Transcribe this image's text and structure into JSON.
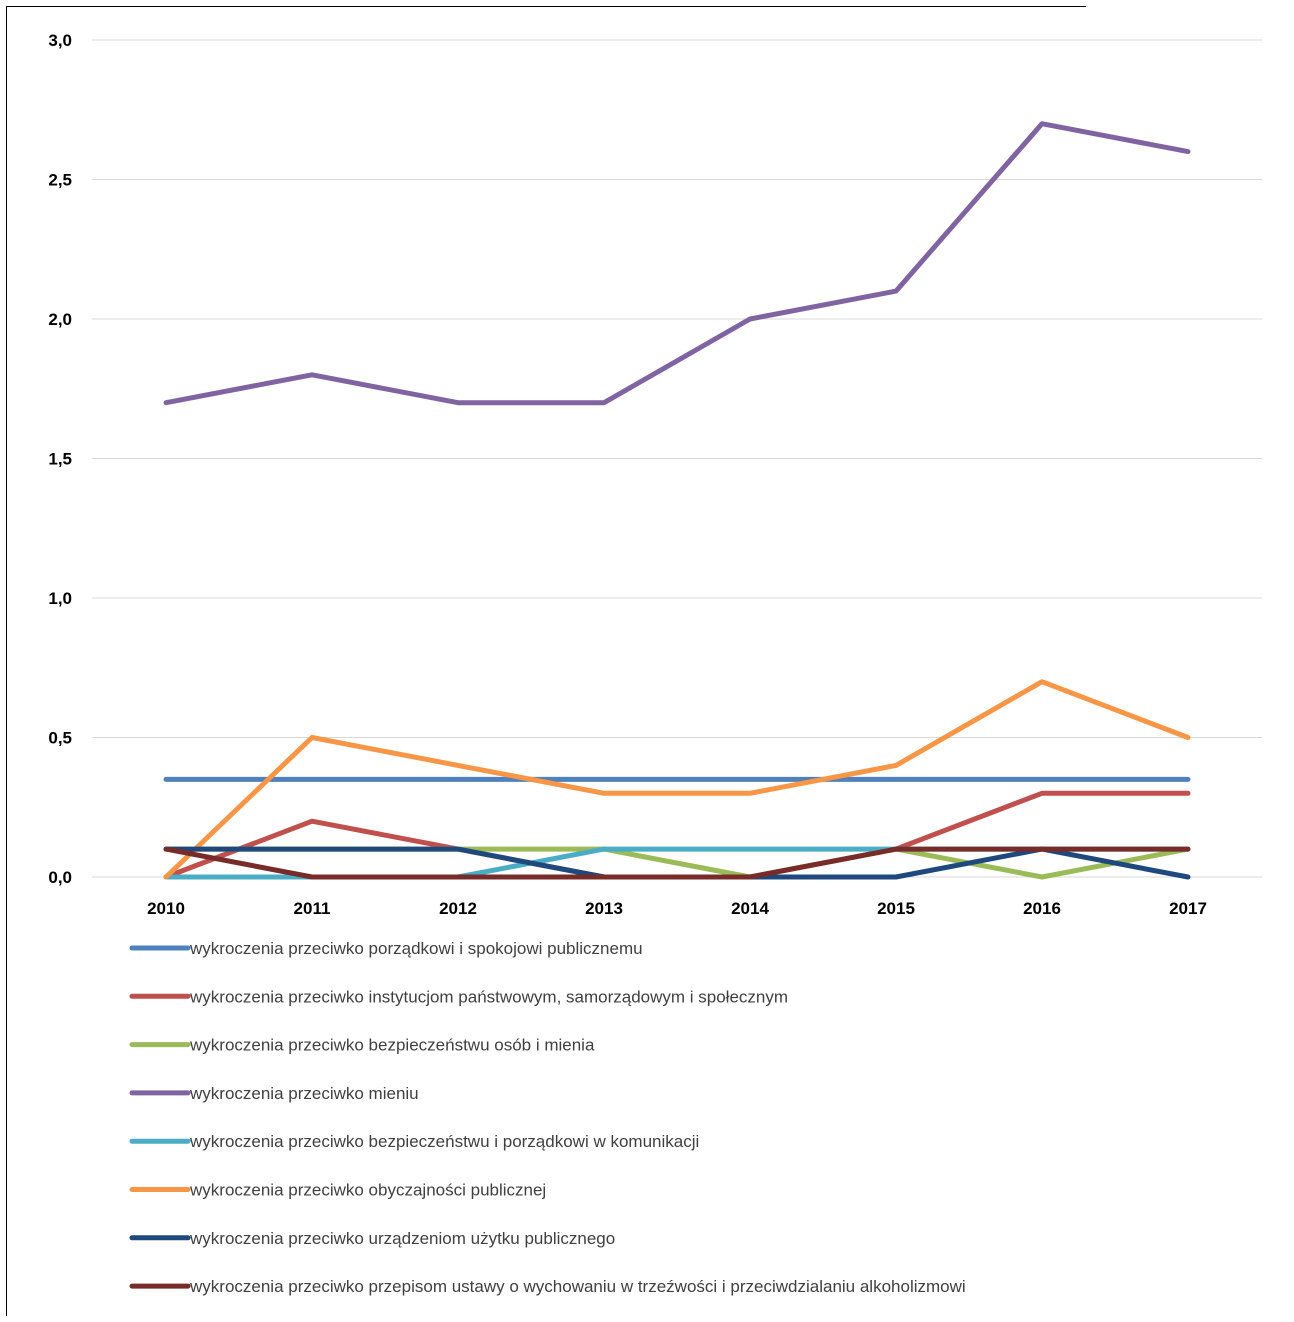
{
  "chart_data": {
    "type": "line",
    "title": "",
    "xlabel": "",
    "ylabel": "",
    "ylim": [
      0,
      3
    ],
    "yticks": [
      "0,0",
      "0,5",
      "1,0",
      "1,5",
      "2,0",
      "2,5",
      "3,0"
    ],
    "ytick_values": [
      0,
      0.5,
      1.0,
      1.5,
      2.0,
      2.5,
      3.0
    ],
    "categories": [
      "2010",
      "2011",
      "2012",
      "2013",
      "2014",
      "2015",
      "2016",
      "2017"
    ],
    "grid": "horizontal",
    "legend_position": "bottom",
    "series": [
      {
        "name": "wykroczenia przeciwko porządkowi i spokojowi publicznemu",
        "color": "#4f81bd",
        "values": [
          0.35,
          0.35,
          0.35,
          0.35,
          0.35,
          0.35,
          0.35,
          0.35
        ]
      },
      {
        "name": "wykroczenia przeciwko instytucjom państwowym, samorządowym i społecznym",
        "color": "#c0504d",
        "values": [
          0.0,
          0.2,
          0.1,
          0.0,
          0.0,
          0.1,
          0.3,
          0.3
        ]
      },
      {
        "name": "wykroczenia przeciwko bezpieczeństwu osób i mienia",
        "color": "#9bbb59",
        "values": [
          0.1,
          0.1,
          0.1,
          0.1,
          0.0,
          0.1,
          0.0,
          0.1
        ]
      },
      {
        "name": "wykroczenia przeciwko mieniu",
        "color": "#8064a2",
        "values": [
          1.7,
          1.8,
          1.7,
          1.7,
          2.0,
          2.1,
          2.7,
          2.6
        ]
      },
      {
        "name": "wykroczenia przeciwko bezpieczeństwu i porządkowi w komunikacji",
        "color": "#4bacc6",
        "values": [
          0.0,
          0.0,
          0.0,
          0.1,
          0.1,
          0.1,
          0.1,
          0.1
        ]
      },
      {
        "name": "wykroczenia przeciwko obyczajności publicznej",
        "color": "#f79646",
        "values": [
          0.0,
          0.5,
          0.4,
          0.3,
          0.3,
          0.4,
          0.7,
          0.5
        ]
      },
      {
        "name": "wykroczenia przeciwko urządzeniom użytku publicznego",
        "color": "#1f497d",
        "values": [
          0.1,
          0.1,
          0.1,
          0.0,
          0.0,
          0.0,
          0.1,
          0.0
        ]
      },
      {
        "name": "wykroczenia przeciwko przepisom ustawy o wychowaniu w trzeźwości i przeciwdzialaniu alkoholizmowi",
        "color": "#772c2a",
        "values": [
          0.1,
          0.0,
          0.0,
          0.0,
          0.0,
          0.1,
          0.1,
          0.1
        ]
      }
    ]
  }
}
